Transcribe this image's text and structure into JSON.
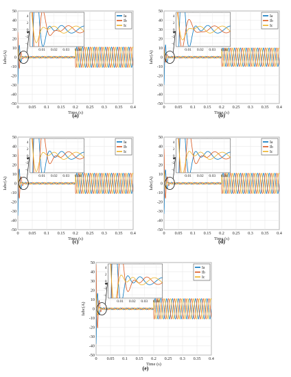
{
  "figure": {
    "panels": [
      "(a)",
      "(b)",
      "(c)",
      "(d)",
      "(e)"
    ]
  },
  "colors": {
    "Ia": "#0072BD",
    "Ib": "#D95319",
    "Ic": "#EDB120"
  },
  "chart_data": [
    {
      "type": "line",
      "label": "(a)",
      "xlabel": "Time (s)",
      "ylabel": "Iabc(A)",
      "xlim": [
        0,
        0.4
      ],
      "ylim": [
        -50,
        50
      ],
      "xticks": [
        "0",
        "0.05",
        "0.1",
        "0.15",
        "0.2",
        "0.25",
        "0.3",
        "0.35",
        "0.4"
      ],
      "yticks": [
        "50",
        "40",
        "30",
        "20",
        "10",
        "0",
        "-10",
        "-20",
        "-30",
        "-40",
        "-50"
      ],
      "grid": true,
      "legend": "top-right",
      "series": [
        {
          "name": "Ia"
        },
        {
          "name": "Ib"
        },
        {
          "name": "Ic"
        }
      ],
      "pre_load_amplitude": 1,
      "post_load_amplitude": 11,
      "load_step_time": 0.2,
      "fundamental_hz": 50,
      "transient_peaks": {
        "Ia": -29,
        "Ib": 28,
        "Ic": 8
      },
      "inset": {
        "xlim": [
          0,
          0.045
        ],
        "ylim": [
          -5,
          5
        ],
        "xticks": [
          "0.01",
          "0.02",
          "0.03",
          "0.04"
        ],
        "yticks": [
          "4",
          "2",
          "0",
          "-2",
          "-4"
        ]
      }
    },
    {
      "type": "line",
      "label": "(b)",
      "xlabel": "Time (s)",
      "ylabel": "Iabc(A)",
      "xlim": [
        0,
        0.4
      ],
      "ylim": [
        -50,
        50
      ],
      "xticks": [
        "0",
        "0.05",
        "0.1",
        "0.15",
        "0.2",
        "0.25",
        "0.3",
        "0.35",
        "0.4"
      ],
      "yticks": [
        "50",
        "40",
        "30",
        "20",
        "10",
        "0",
        "-10",
        "-20",
        "-30",
        "-40",
        "-50"
      ],
      "grid": true,
      "legend": "top-right",
      "series": [
        {
          "name": "Ia"
        },
        {
          "name": "Ib"
        },
        {
          "name": "Ic"
        }
      ],
      "pre_load_amplitude": 1,
      "post_load_amplitude": 10,
      "load_step_time": 0.2,
      "fundamental_hz": 50,
      "transient_peaks": {
        "Ia": -30,
        "Ib": 12,
        "Ic": 6
      },
      "inset": {
        "xlim": [
          0,
          0.045
        ],
        "ylim": [
          -5,
          5
        ],
        "xticks": [
          "0.01",
          "0.02",
          "0.03",
          "0.04"
        ],
        "yticks": [
          "4",
          "2",
          "0",
          "-2",
          "-4"
        ]
      }
    },
    {
      "type": "line",
      "label": "(c)",
      "xlabel": "Time (s)",
      "ylabel": "Iabc(A)",
      "xlim": [
        0,
        0.4
      ],
      "ylim": [
        -50,
        50
      ],
      "xticks": [
        "0",
        "0.05",
        "0.1",
        "0.15",
        "0.2",
        "0.25",
        "0.3",
        "0.35",
        "0.4"
      ],
      "yticks": [
        "50",
        "40",
        "30",
        "20",
        "10",
        "0",
        "-10",
        "-20",
        "-30",
        "-40",
        "-50"
      ],
      "grid": true,
      "legend": "top-right",
      "series": [
        {
          "name": "Ia"
        },
        {
          "name": "Ib"
        },
        {
          "name": "Ic"
        }
      ],
      "pre_load_amplitude": 1,
      "post_load_amplitude": 11,
      "load_step_time": 0.2,
      "fundamental_hz": 50,
      "transient_peaks": {
        "Ia": -35,
        "Ib": 38,
        "Ic": 10
      },
      "inset": {
        "xlim": [
          0,
          0.045
        ],
        "ylim": [
          -5,
          5
        ],
        "xticks": [
          "0.01",
          "0.02",
          "0.03",
          "0.04"
        ],
        "yticks": [
          "4",
          "2",
          "0",
          "-2",
          "-4"
        ]
      }
    },
    {
      "type": "line",
      "label": "(d)",
      "xlabel": "Time (s)",
      "ylabel": "Iabc(A)",
      "xlim": [
        0,
        0.4
      ],
      "ylim": [
        -50,
        50
      ],
      "xticks": [
        "0",
        "0.05",
        "0.1",
        "0.15",
        "0.2",
        "0.25",
        "0.3",
        "0.35",
        "0.4"
      ],
      "yticks": [
        "50",
        "40",
        "30",
        "20",
        "10",
        "0",
        "-10",
        "-20",
        "-30",
        "-40",
        "-50"
      ],
      "grid": true,
      "legend": "top-right",
      "series": [
        {
          "name": "Ia"
        },
        {
          "name": "Ib"
        },
        {
          "name": "Ic"
        }
      ],
      "pre_load_amplitude": 1,
      "post_load_amplitude": 11,
      "load_step_time": 0.2,
      "fundamental_hz": 50,
      "transient_peaks": {
        "Ia": -33,
        "Ib": 38,
        "Ic": 12
      },
      "inset": {
        "xlim": [
          0,
          0.045
        ],
        "ylim": [
          -5,
          5
        ],
        "xticks": [
          "0.01",
          "0.02",
          "0.03",
          "0.04"
        ],
        "yticks": [
          "4",
          "2",
          "0",
          "-2",
          "-4"
        ]
      }
    },
    {
      "type": "line",
      "label": "(e)",
      "xlabel": "Time (s)",
      "ylabel": "Iabc(A)",
      "xlim": [
        0,
        0.4
      ],
      "ylim": [
        -50,
        50
      ],
      "xticks": [
        "0",
        "0.05",
        "0.1",
        "0.15",
        "0.2",
        "0.25",
        "0.3",
        "0.35",
        "0.4"
      ],
      "yticks": [
        "50",
        "40",
        "30",
        "20",
        "10",
        "0",
        "-10",
        "-20",
        "-30",
        "-40",
        "-50"
      ],
      "grid": true,
      "legend": "top-right",
      "series": [
        {
          "name": "Ia"
        },
        {
          "name": "Ib"
        },
        {
          "name": "Ic"
        }
      ],
      "pre_load_amplitude": 1,
      "post_load_amplitude": 11,
      "load_step_time": 0.2,
      "fundamental_hz": 50,
      "transient_peaks": {
        "Ia": -38,
        "Ib": 49,
        "Ic": 15
      },
      "inset": {
        "xlim": [
          0,
          0.045
        ],
        "ylim": [
          -5,
          5
        ],
        "xticks": [
          "0.01",
          "0.02",
          "0.03",
          "0.04"
        ],
        "yticks": [
          "4",
          "2",
          "0",
          "-2",
          "-4"
        ]
      }
    }
  ]
}
